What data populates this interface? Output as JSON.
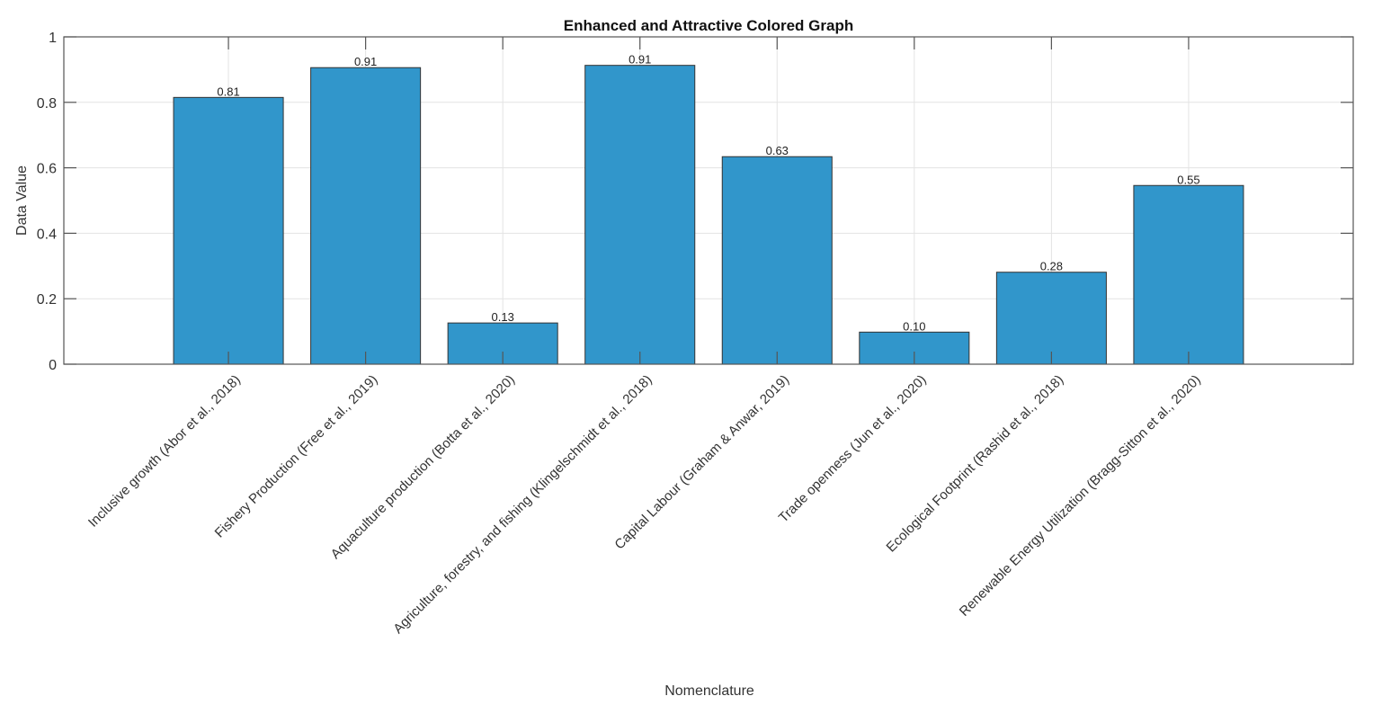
{
  "chart_data": {
    "type": "bar",
    "title": "Enhanced and Attractive Colored Graph",
    "xlabel": "Nomenclature",
    "ylabel": "Data Value",
    "categories": [
      "Inclusive growth (Abor et al., 2018)",
      "Fishery Production (Free et al., 2019)",
      "Aquaculture production (Botta et al., 2020)",
      "Agriculture, forestry, and fishing (Klingelschmidt et al., 2018)",
      "Capital Labour (Graham & Anwar, 2019)",
      "Trade openness (Jun et al., 2020)",
      "Ecological Footprint (Rashid et al., 2018)",
      "Renewable Energy Utilization (Bragg-Sitton et al., 2020)"
    ],
    "values": [
      0.815,
      0.906,
      0.126,
      0.913,
      0.634,
      0.098,
      0.281,
      0.546
    ],
    "data_labels": [
      "0.81",
      "0.91",
      "0.13",
      "0.91",
      "0.63",
      "0.10",
      "0.28",
      "0.55"
    ],
    "ylim": [
      0,
      1
    ],
    "xlim": [
      -0.2,
      9.2
    ],
    "yticks": [
      0,
      0.2,
      0.4,
      0.6,
      0.8,
      1
    ],
    "ytick_labels": [
      "0",
      "0.2",
      "0.4",
      "0.6",
      "0.8",
      "1"
    ],
    "grid": true,
    "bar_color": "#3196CB",
    "edge_color": "#333333"
  }
}
